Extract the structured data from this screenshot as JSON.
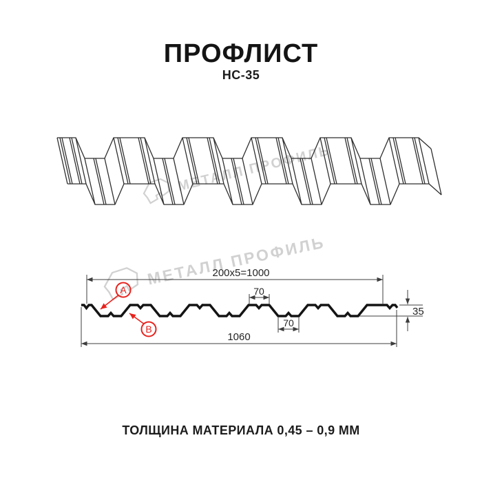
{
  "header": {
    "title": "ПРОФЛИСТ",
    "subtitle": "НС-35"
  },
  "watermark": {
    "text": "МЕТАЛЛ ПРОФИЛЬ",
    "logo_icon": "metall-profil-logo"
  },
  "drawing_3d": {
    "description": "wireframe perspective of corrugated profiled sheet НС-35"
  },
  "section_drawing": {
    "dim_top": "200x5=1000",
    "dim_crest_width": "70",
    "dim_valley_width": "70",
    "dim_total_width": "1060",
    "dim_height": "35",
    "label_a": "A",
    "label_b": "B"
  },
  "footer": {
    "thickness_note": "ТОЛЩИНА МАТЕРИАЛА 0,45 – 0,9 ММ"
  },
  "colors": {
    "background": "#ffffff",
    "ink": "#141414",
    "dimension_lines": "#3d3d3d",
    "accent_red": "#e8211c",
    "watermark_gray": "#d1d1d1"
  }
}
